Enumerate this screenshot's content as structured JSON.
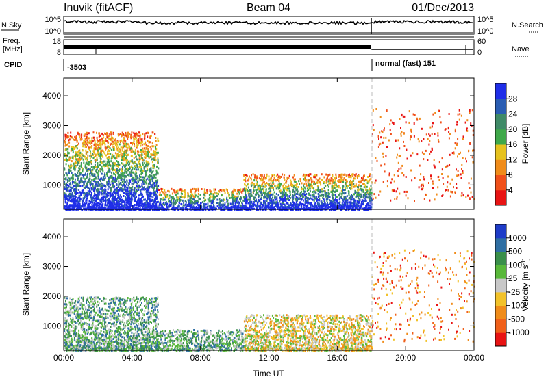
{
  "header": {
    "station": "Inuvik (fitACF)",
    "beam": "Beam 04",
    "date": "01/Dec/2013"
  },
  "colors": {
    "power_scale": [
      "#1f2ee8",
      "#2a5db3",
      "#3f8a67",
      "#3fa84a",
      "#e6c21e",
      "#f08c1a",
      "#f0501a",
      "#e81414"
    ],
    "velocity_scale": [
      "#1e3cc8",
      "#2f6fa3",
      "#3a8f4a",
      "#59b83a",
      "#c8c8c8",
      "#f2c22a",
      "#f08c1a",
      "#f0601a",
      "#e81414"
    ],
    "scatter_sky": "#2a5db3",
    "scatter_green": "#3f8a67",
    "scatter_red": "#e81414"
  },
  "panels": {
    "nsky_label": "N.Sky",
    "nsearch_label": "N.Search",
    "nsky_ticks": [
      "10^5",
      "10^0"
    ],
    "nsearch_ticks": [
      "10^5",
      "10^0"
    ],
    "freq_label": "Freq.",
    "freq_units": "[MHz]",
    "freq_ticks": [
      "18",
      "8"
    ],
    "nave_label": "Nave",
    "nave_ticks": [
      "60",
      "0"
    ],
    "cpid_label": "CPID",
    "cpid_before": "-3503",
    "cpid_after": "normal (fast) 151"
  },
  "chart_data": [
    {
      "type": "heatmap",
      "title": "",
      "xlabel": "Time UT",
      "ylabel": "Slant Range [km]",
      "x_ticks": [
        "00:00",
        "04:00",
        "08:00",
        "12:00",
        "16:00",
        "20:00",
        "00:00"
      ],
      "y_ticks": [
        "1000",
        "2000",
        "3000",
        "4000"
      ],
      "xlim_hours": [
        0,
        24
      ],
      "ylim_km": [
        180,
        4600
      ],
      "colorbar_label": "Power [dB]",
      "colorbar_ticks": [
        "4",
        "8",
        "12",
        "16",
        "20",
        "24",
        "28"
      ],
      "colorbar_range": [
        0,
        32
      ],
      "mode_change_hour": 18.0,
      "echo_regions": [
        {
          "t_start": 0.0,
          "t_end": 5.5,
          "r_start": 200,
          "r_end": 2800,
          "typical_value": 26
        },
        {
          "t_start": 5.5,
          "t_end": 10.5,
          "r_start": 200,
          "r_end": 900,
          "typical_value": 24
        },
        {
          "t_start": 10.5,
          "t_end": 18.0,
          "r_start": 200,
          "r_end": 1400,
          "typical_value": 10
        },
        {
          "t_start": 18.0,
          "t_end": 24.0,
          "r_start": 500,
          "r_end": 3600,
          "typical_value": 4
        }
      ]
    },
    {
      "type": "heatmap",
      "title": "",
      "xlabel": "Time UT",
      "ylabel": "Slant Range [km]",
      "x_ticks": [
        "00:00",
        "04:00",
        "08:00",
        "12:00",
        "16:00",
        "20:00",
        "00:00"
      ],
      "y_ticks": [
        "1000",
        "2000",
        "3000",
        "4000"
      ],
      "xlim_hours": [
        0,
        24
      ],
      "ylim_km": [
        180,
        4600
      ],
      "colorbar_label": "Velocity [m s",
      "colorbar_label_sup": "-1",
      "colorbar_label_end": "]",
      "colorbar_ticks": [
        "1000",
        "500",
        "100",
        "25",
        "-25",
        "-100",
        "-500",
        "-1000"
      ],
      "mode_change_hour": 18.0,
      "echo_regions": [
        {
          "t_start": 0.0,
          "t_end": 5.5,
          "r_start": 200,
          "r_end": 2000,
          "typical_value": 100
        },
        {
          "t_start": 5.5,
          "t_end": 10.5,
          "r_start": 200,
          "r_end": 900,
          "typical_value": 100
        },
        {
          "t_start": 10.5,
          "t_end": 18.0,
          "r_start": 200,
          "r_end": 1400,
          "typical_value": -100
        },
        {
          "t_start": 18.0,
          "t_end": 24.0,
          "r_start": 500,
          "r_end": 3600,
          "typical_value": -500
        }
      ]
    }
  ]
}
